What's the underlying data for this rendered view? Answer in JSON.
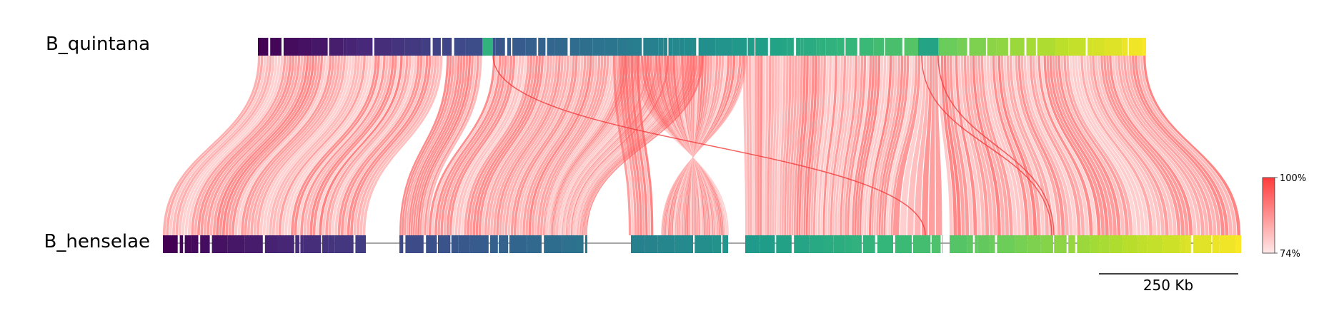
{
  "genomes": {
    "top": {
      "name": "B_quintana"
    },
    "bottom": {
      "name": "B_henselae"
    }
  },
  "colorbar": {
    "max_label": "100%",
    "min_label": "74%",
    "color_high": "#ff3b3b",
    "color_low": "#ffe8e8"
  },
  "scale_bar": {
    "label": "250 Kb"
  },
  "link_color": "#ff5a5a",
  "inversion_color": "#f03a3a"
}
